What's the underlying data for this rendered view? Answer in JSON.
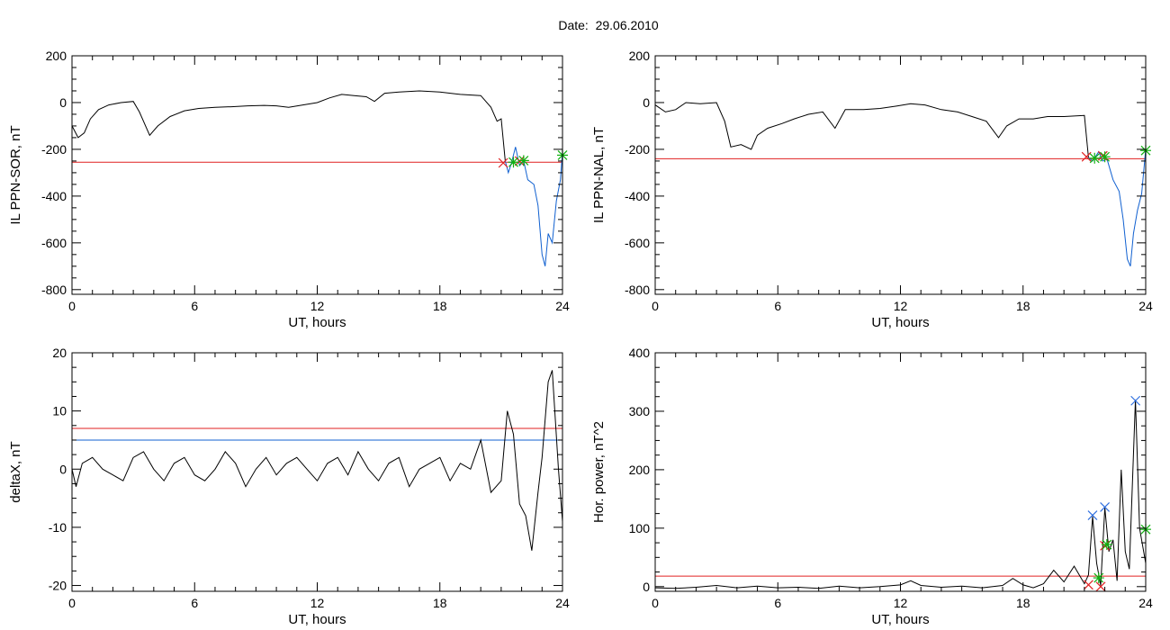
{
  "header": {
    "title": "Date:  29.06.2010"
  },
  "colors": {
    "trace": "#000000",
    "threshold": "#e02020",
    "highlight": "#1060d0",
    "marker_x": "#e02020",
    "marker_star": "#10b010",
    "marker_blue": "#3070e0"
  },
  "chart_data": [
    {
      "type": "line",
      "xlabel": "UT, hours",
      "ylabel": "IL PPN-SOR, nT",
      "xlim": [
        0,
        24
      ],
      "ylim": [
        -820,
        200
      ],
      "xticks": [
        0,
        6,
        12,
        18,
        24
      ],
      "yticks": [
        200,
        0,
        -200,
        -400,
        -600,
        -800
      ],
      "threshold": -255,
      "series": [
        {
          "values": [
            [
              0,
              -100
            ],
            [
              0.3,
              -150
            ],
            [
              0.6,
              -130
            ],
            [
              0.9,
              -70
            ],
            [
              1.3,
              -30
            ],
            [
              1.8,
              -10
            ],
            [
              2.4,
              0
            ],
            [
              3,
              5
            ],
            [
              3.3,
              -40
            ],
            [
              3.8,
              -140
            ],
            [
              4.2,
              -100
            ],
            [
              4.8,
              -60
            ],
            [
              5.5,
              -35
            ],
            [
              6.2,
              -25
            ],
            [
              7,
              -20
            ],
            [
              7.8,
              -18
            ],
            [
              8.6,
              -14
            ],
            [
              9.4,
              -12
            ],
            [
              10,
              -14
            ],
            [
              10.6,
              -20
            ],
            [
              11.3,
              -10
            ],
            [
              12,
              0
            ],
            [
              12.6,
              20
            ],
            [
              13.2,
              35
            ],
            [
              13.8,
              30
            ],
            [
              14.4,
              25
            ],
            [
              14.8,
              5
            ],
            [
              15.3,
              40
            ],
            [
              16,
              45
            ],
            [
              17,
              50
            ],
            [
              18,
              45
            ],
            [
              19,
              35
            ],
            [
              20,
              30
            ],
            [
              20.5,
              -20
            ],
            [
              20.8,
              -80
            ],
            [
              21,
              -70
            ],
            [
              21.2,
              -250
            ]
          ]
        },
        {
          "values": [
            [
              21.2,
              -250
            ],
            [
              21.35,
              -300
            ],
            [
              21.5,
              -260
            ],
            [
              21.7,
              -190
            ],
            [
              21.9,
              -270
            ],
            [
              22.1,
              -250
            ],
            [
              22.3,
              -330
            ],
            [
              22.6,
              -350
            ],
            [
              22.8,
              -440
            ],
            [
              23,
              -650
            ],
            [
              23.15,
              -700
            ],
            [
              23.3,
              -560
            ],
            [
              23.5,
              -600
            ],
            [
              23.7,
              -420
            ],
            [
              23.9,
              -330
            ],
            [
              24,
              -210
            ]
          ]
        }
      ],
      "markers": [
        {
          "x": 21.1,
          "y": -258,
          "kind": "x"
        },
        {
          "x": 21.9,
          "y": -250,
          "kind": "x"
        },
        {
          "x": 21.6,
          "y": -255,
          "kind": "star"
        },
        {
          "x": 22.1,
          "y": -248,
          "kind": "star"
        },
        {
          "x": 24,
          "y": -225,
          "kind": "star"
        }
      ]
    },
    {
      "type": "line",
      "xlabel": "UT, hours",
      "ylabel": "IL PPN-NAL, nT",
      "xlim": [
        0,
        24
      ],
      "ylim": [
        -820,
        200
      ],
      "xticks": [
        0,
        6,
        12,
        18,
        24
      ],
      "yticks": [
        200,
        0,
        -200,
        -400,
        -600,
        -800
      ],
      "threshold": -240,
      "series": [
        {
          "values": [
            [
              0,
              -10
            ],
            [
              0.5,
              -40
            ],
            [
              1,
              -30
            ],
            [
              1.5,
              0
            ],
            [
              2.2,
              -5
            ],
            [
              3,
              0
            ],
            [
              3.4,
              -80
            ],
            [
              3.7,
              -190
            ],
            [
              4.2,
              -180
            ],
            [
              4.7,
              -200
            ],
            [
              5,
              -140
            ],
            [
              5.5,
              -110
            ],
            [
              6.2,
              -90
            ],
            [
              6.8,
              -70
            ],
            [
              7.5,
              -50
            ],
            [
              8.2,
              -40
            ],
            [
              8.8,
              -110
            ],
            [
              9.3,
              -30
            ],
            [
              10.2,
              -30
            ],
            [
              11,
              -25
            ],
            [
              11.8,
              -15
            ],
            [
              12.5,
              -5
            ],
            [
              13.2,
              -10
            ],
            [
              14,
              -30
            ],
            [
              14.8,
              -40
            ],
            [
              15.5,
              -60
            ],
            [
              16.2,
              -80
            ],
            [
              16.8,
              -150
            ],
            [
              17.2,
              -100
            ],
            [
              17.8,
              -70
            ],
            [
              18.5,
              -70
            ],
            [
              19.2,
              -60
            ],
            [
              20,
              -60
            ],
            [
              21,
              -55
            ],
            [
              21.2,
              -235
            ]
          ]
        },
        {
          "values": [
            [
              21.2,
              -235
            ],
            [
              21.4,
              -250
            ],
            [
              21.7,
              -210
            ],
            [
              21.9,
              -250
            ],
            [
              22.1,
              -240
            ],
            [
              22.4,
              -330
            ],
            [
              22.7,
              -380
            ],
            [
              22.9,
              -500
            ],
            [
              23.1,
              -670
            ],
            [
              23.25,
              -700
            ],
            [
              23.4,
              -560
            ],
            [
              23.6,
              -460
            ],
            [
              23.8,
              -390
            ],
            [
              24,
              -200
            ]
          ]
        }
      ],
      "markers": [
        {
          "x": 21.1,
          "y": -232,
          "kind": "x"
        },
        {
          "x": 21.9,
          "y": -228,
          "kind": "x"
        },
        {
          "x": 21.5,
          "y": -238,
          "kind": "star"
        },
        {
          "x": 22.0,
          "y": -232,
          "kind": "star"
        },
        {
          "x": 24,
          "y": -205,
          "kind": "star"
        }
      ]
    },
    {
      "type": "line",
      "xlabel": "UT, hours",
      "ylabel": "deltaX, nT",
      "xlim": [
        0,
        24
      ],
      "ylim": [
        -21,
        20
      ],
      "xticks": [
        0,
        6,
        12,
        18,
        24
      ],
      "yticks": [
        20,
        10,
        0,
        -10,
        -20
      ],
      "threshold": 7,
      "threshold2": 5,
      "series": [
        {
          "values": [
            [
              0,
              0
            ],
            [
              0.2,
              -3
            ],
            [
              0.5,
              1
            ],
            [
              1,
              2
            ],
            [
              1.5,
              0
            ],
            [
              2,
              -1
            ],
            [
              2.5,
              -2
            ],
            [
              3,
              2
            ],
            [
              3.5,
              3
            ],
            [
              4,
              0
            ],
            [
              4.5,
              -2
            ],
            [
              5,
              1
            ],
            [
              5.5,
              2
            ],
            [
              6,
              -1
            ],
            [
              6.5,
              -2
            ],
            [
              7,
              0
            ],
            [
              7.5,
              3
            ],
            [
              8,
              1
            ],
            [
              8.5,
              -3
            ],
            [
              9,
              0
            ],
            [
              9.5,
              2
            ],
            [
              10,
              -1
            ],
            [
              10.5,
              1
            ],
            [
              11,
              2
            ],
            [
              11.5,
              0
            ],
            [
              12,
              -2
            ],
            [
              12.5,
              1
            ],
            [
              13,
              2
            ],
            [
              13.5,
              -1
            ],
            [
              14,
              3
            ],
            [
              14.5,
              0
            ],
            [
              15,
              -2
            ],
            [
              15.5,
              1
            ],
            [
              16,
              2
            ],
            [
              16.5,
              -3
            ],
            [
              17,
              0
            ],
            [
              17.5,
              1
            ],
            [
              18,
              2
            ],
            [
              18.5,
              -2
            ],
            [
              19,
              1
            ],
            [
              19.5,
              0
            ],
            [
              20,
              5
            ],
            [
              20.5,
              -4
            ],
            [
              21,
              -2
            ],
            [
              21.3,
              10
            ],
            [
              21.6,
              6
            ],
            [
              21.9,
              -6
            ],
            [
              22.2,
              -8
            ],
            [
              22.5,
              -14
            ],
            [
              22.8,
              -4
            ],
            [
              23,
              2
            ],
            [
              23.3,
              15
            ],
            [
              23.5,
              17
            ],
            [
              23.8,
              0
            ],
            [
              24,
              -9
            ]
          ]
        }
      ],
      "markers": []
    },
    {
      "type": "line",
      "xlabel": "UT, hours",
      "ylabel": "Hor. power, nT^2",
      "xlim": [
        0,
        24
      ],
      "ylim": [
        -8,
        400
      ],
      "xticks": [
        0,
        6,
        12,
        18,
        24
      ],
      "yticks": [
        400,
        300,
        200,
        100,
        0
      ],
      "threshold": 18,
      "series": [
        {
          "values": [
            [
              0,
              -2
            ],
            [
              1,
              -3
            ],
            [
              2,
              -1
            ],
            [
              3,
              2
            ],
            [
              4,
              -2
            ],
            [
              5,
              1
            ],
            [
              6,
              -2
            ],
            [
              7,
              -1
            ],
            [
              8,
              -3
            ],
            [
              9,
              1
            ],
            [
              10,
              -2
            ],
            [
              11,
              0
            ],
            [
              12,
              3
            ],
            [
              12.5,
              10
            ],
            [
              13,
              2
            ],
            [
              14,
              -1
            ],
            [
              15,
              1
            ],
            [
              16,
              -2
            ],
            [
              17,
              2
            ],
            [
              17.5,
              14
            ],
            [
              18,
              3
            ],
            [
              18.5,
              -2
            ],
            [
              19,
              5
            ],
            [
              19.5,
              28
            ],
            [
              20,
              8
            ],
            [
              20.5,
              35
            ],
            [
              21,
              5
            ],
            [
              21.2,
              20
            ],
            [
              21.4,
              120
            ],
            [
              21.6,
              40
            ],
            [
              21.8,
              2
            ],
            [
              22,
              135
            ],
            [
              22.2,
              60
            ],
            [
              22.4,
              80
            ],
            [
              22.6,
              10
            ],
            [
              22.8,
              200
            ],
            [
              23,
              60
            ],
            [
              23.2,
              30
            ],
            [
              23.5,
              320
            ],
            [
              23.7,
              100
            ],
            [
              24,
              40
            ]
          ]
        }
      ],
      "markers": [
        {
          "x": 21.4,
          "y": 122,
          "kind": "xb"
        },
        {
          "x": 22.0,
          "y": 136,
          "kind": "xb"
        },
        {
          "x": 23.5,
          "y": 318,
          "kind": "xb"
        },
        {
          "x": 21.2,
          "y": 3,
          "kind": "x"
        },
        {
          "x": 21.8,
          "y": 0,
          "kind": "x"
        },
        {
          "x": 22.0,
          "y": 70,
          "kind": "x"
        },
        {
          "x": 21.7,
          "y": 15,
          "kind": "star"
        },
        {
          "x": 22.1,
          "y": 72,
          "kind": "star"
        },
        {
          "x": 24,
          "y": 98,
          "kind": "star"
        }
      ]
    }
  ]
}
